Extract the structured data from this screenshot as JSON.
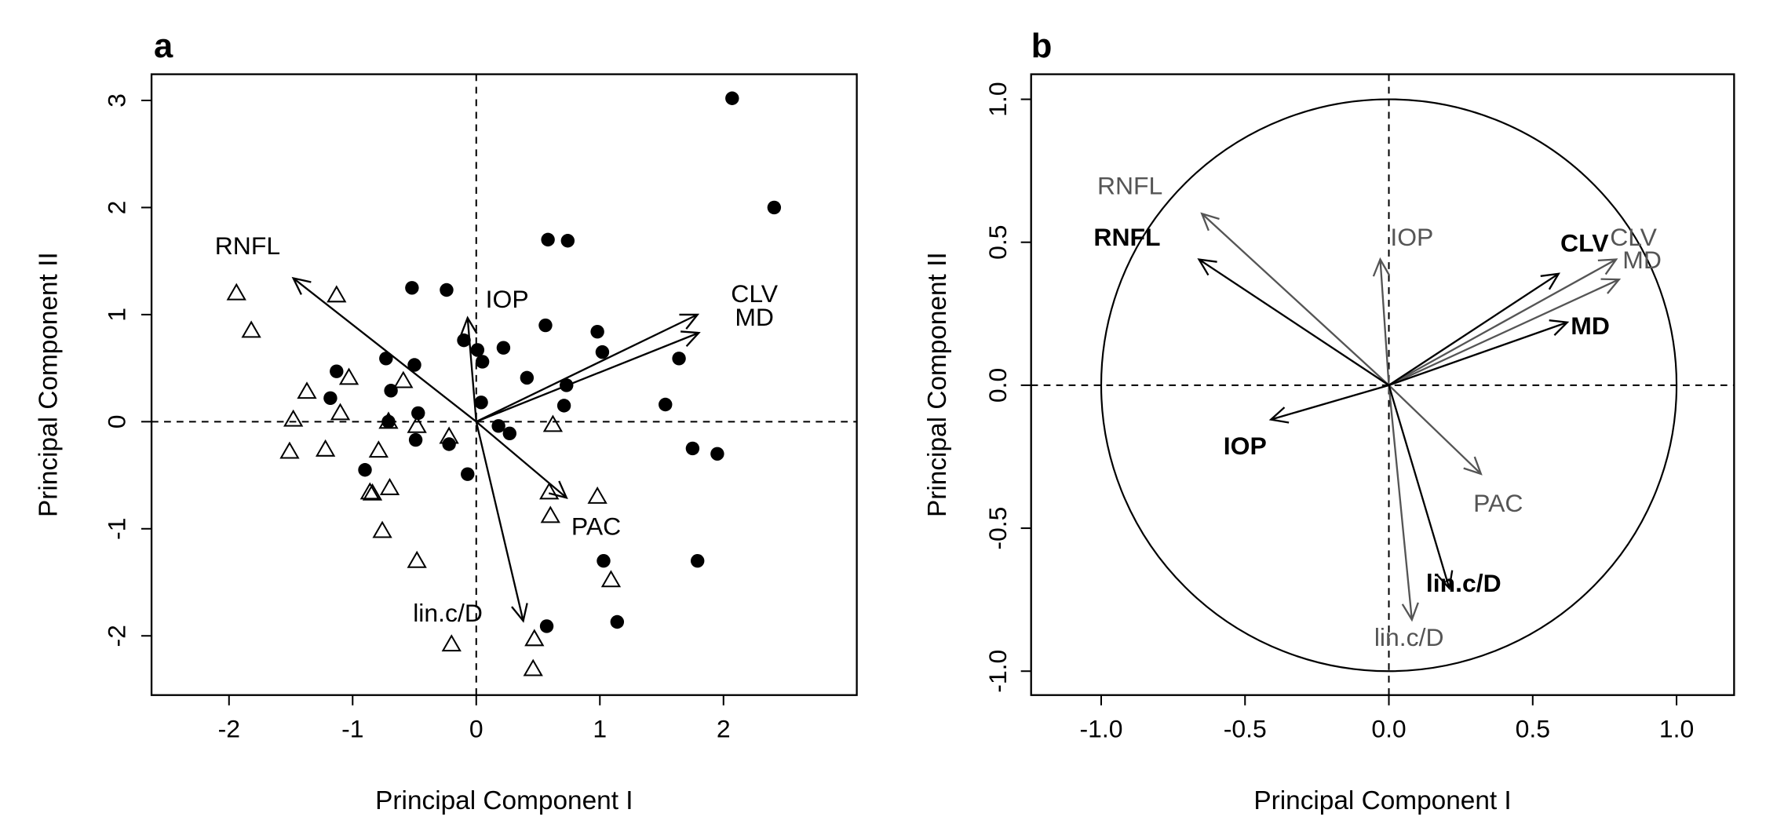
{
  "chart_data": [
    {
      "type": "scatter",
      "panel_label": "a",
      "xlabel": "Principal Component I",
      "ylabel": "Principal Component II",
      "xlim": [
        -2.63,
        3.08
      ],
      "ylim": [
        -2.55,
        3.24
      ],
      "xticks": [
        "-2",
        "-1",
        "0",
        "1",
        "2"
      ],
      "xtick_values": [
        -2,
        -1,
        0,
        1,
        2
      ],
      "yticks": [
        "-2",
        "-1",
        "0",
        "1",
        "2",
        "3"
      ],
      "ytick_values": [
        -2,
        -1,
        0,
        1,
        2,
        3
      ],
      "reference_lines": {
        "x": 0,
        "y": 0,
        "style": "dashed"
      },
      "series": [
        {
          "name": "filled-circles",
          "marker": "circle-filled",
          "points": [
            [
              2.07,
              3.02
            ],
            [
              2.41,
              2.0
            ],
            [
              0.58,
              1.7
            ],
            [
              0.74,
              1.69
            ],
            [
              -0.52,
              1.25
            ],
            [
              -0.24,
              1.23
            ],
            [
              0.56,
              0.9
            ],
            [
              0.98,
              0.84
            ],
            [
              1.02,
              0.65
            ],
            [
              0.22,
              0.69
            ],
            [
              -0.1,
              0.76
            ],
            [
              0.01,
              0.67
            ],
            [
              0.05,
              0.56
            ],
            [
              -0.73,
              0.59
            ],
            [
              -0.5,
              0.53
            ],
            [
              -1.13,
              0.47
            ],
            [
              0.41,
              0.41
            ],
            [
              0.73,
              0.34
            ],
            [
              -0.69,
              0.29
            ],
            [
              -1.18,
              0.22
            ],
            [
              0.04,
              0.18
            ],
            [
              0.71,
              0.15
            ],
            [
              1.53,
              0.16
            ],
            [
              1.64,
              0.59
            ],
            [
              -0.47,
              0.08
            ],
            [
              -0.71,
              0.0
            ],
            [
              0.18,
              -0.04
            ],
            [
              0.27,
              -0.11
            ],
            [
              -0.49,
              -0.17
            ],
            [
              -0.22,
              -0.21
            ],
            [
              -0.9,
              -0.45
            ],
            [
              -0.07,
              -0.49
            ],
            [
              1.75,
              -0.25
            ],
            [
              1.95,
              -0.3
            ],
            [
              1.03,
              -1.3
            ],
            [
              1.79,
              -1.3
            ],
            [
              1.14,
              -1.87
            ],
            [
              0.57,
              -1.91
            ]
          ]
        },
        {
          "name": "open-triangles",
          "marker": "triangle-open",
          "points": [
            [
              -1.94,
              1.2
            ],
            [
              -1.82,
              0.85
            ],
            [
              -1.13,
              1.18
            ],
            [
              -1.03,
              0.41
            ],
            [
              -1.37,
              0.28
            ],
            [
              -1.48,
              0.02
            ],
            [
              -1.1,
              0.08
            ],
            [
              -1.51,
              -0.28
            ],
            [
              -1.22,
              -0.26
            ],
            [
              -0.59,
              0.38
            ],
            [
              -0.71,
              0.0
            ],
            [
              -0.48,
              -0.04
            ],
            [
              -0.22,
              -0.14
            ],
            [
              -0.79,
              -0.27
            ],
            [
              -0.86,
              -0.66
            ],
            [
              -0.84,
              -0.67
            ],
            [
              -0.7,
              -0.62
            ],
            [
              -0.76,
              -1.02
            ],
            [
              -0.48,
              -1.3
            ],
            [
              -0.2,
              -2.08
            ],
            [
              0.62,
              -0.03
            ],
            [
              0.59,
              -0.66
            ],
            [
              0.6,
              -0.88
            ],
            [
              0.98,
              -0.7
            ],
            [
              1.09,
              -1.48
            ],
            [
              0.47,
              -2.03
            ],
            [
              0.46,
              -2.31
            ]
          ]
        }
      ],
      "vectors": [
        {
          "name": "RNFL",
          "x": -1.48,
          "y": 1.34,
          "label_x": -1.85,
          "label_y": 1.65,
          "color": "#000000",
          "bold": false
        },
        {
          "name": "IOP",
          "x": -0.07,
          "y": 0.97,
          "label_x": 0.25,
          "label_y": 1.15,
          "color": "#000000",
          "bold": false
        },
        {
          "name": "CLV",
          "x": 1.79,
          "y": 1.0,
          "label_x": 2.25,
          "label_y": 1.2,
          "color": "#000000",
          "bold": false
        },
        {
          "name": "MD",
          "x": 1.8,
          "y": 0.83,
          "label_x": 2.25,
          "label_y": 0.98,
          "color": "#000000",
          "bold": false
        },
        {
          "name": "PAC",
          "x": 0.73,
          "y": -0.71,
          "label_x": 0.97,
          "label_y": -0.97,
          "color": "#000000",
          "bold": false
        },
        {
          "name": "lin.c/D",
          "x": 0.38,
          "y": -1.86,
          "label_x": -0.23,
          "label_y": -1.78,
          "color": "#000000",
          "bold": false
        }
      ]
    },
    {
      "type": "scatter",
      "panel_label": "b",
      "xlabel": "Principal Component I",
      "ylabel": "Principal Component II",
      "xlim": [
        -1.24,
        1.2
      ],
      "ylim": [
        -1.08,
        1.09
      ],
      "xticks": [
        "-1.0",
        "-0.5",
        "0.0",
        "0.5",
        "1.0"
      ],
      "xtick_values": [
        -1,
        -0.5,
        0,
        0.5,
        1
      ],
      "yticks": [
        "-1.0",
        "-0.5",
        "0.0",
        "0.5",
        "1.0"
      ],
      "ytick_values": [
        -1,
        -0.5,
        0,
        0.5,
        1
      ],
      "reference_lines": {
        "x": 0,
        "y": 0,
        "style": "dashed"
      },
      "unit_circle": true,
      "vectors": [
        {
          "name": "RNFL",
          "x": -0.65,
          "y": 0.6,
          "label_x": -0.9,
          "label_y": 0.7,
          "color": "#555555",
          "bold": false
        },
        {
          "name": "IOP",
          "x": -0.03,
          "y": 0.44,
          "label_x": 0.08,
          "label_y": 0.52,
          "color": "#555555",
          "bold": false
        },
        {
          "name": "CLV",
          "x": 0.79,
          "y": 0.44,
          "label_x": 0.85,
          "label_y": 0.52,
          "color": "#555555",
          "bold": false
        },
        {
          "name": "MD",
          "x": 0.8,
          "y": 0.37,
          "label_x": 0.88,
          "label_y": 0.44,
          "color": "#555555",
          "bold": false
        },
        {
          "name": "PAC",
          "x": 0.32,
          "y": -0.31,
          "label_x": 0.38,
          "label_y": -0.41,
          "color": "#555555",
          "bold": false
        },
        {
          "name": "lin.c/D",
          "x": 0.08,
          "y": -0.82,
          "label_x": 0.07,
          "label_y": -0.88,
          "color": "#555555",
          "bold": false
        },
        {
          "name": "RNFL",
          "x": -0.66,
          "y": 0.44,
          "label_x": -0.91,
          "label_y": 0.52,
          "color": "#000000",
          "bold": true
        },
        {
          "name": "CLV",
          "x": 0.59,
          "y": 0.39,
          "label_x": 0.68,
          "label_y": 0.5,
          "color": "#000000",
          "bold": true
        },
        {
          "name": "MD",
          "x": 0.62,
          "y": 0.22,
          "label_x": 0.7,
          "label_y": 0.21,
          "color": "#000000",
          "bold": true
        },
        {
          "name": "IOP",
          "x": -0.41,
          "y": -0.12,
          "label_x": -0.5,
          "label_y": -0.21,
          "color": "#000000",
          "bold": true
        },
        {
          "name": "lin.c/D",
          "x": 0.21,
          "y": -0.71,
          "label_x": 0.26,
          "label_y": -0.69,
          "color": "#000000",
          "bold": true
        }
      ]
    }
  ]
}
